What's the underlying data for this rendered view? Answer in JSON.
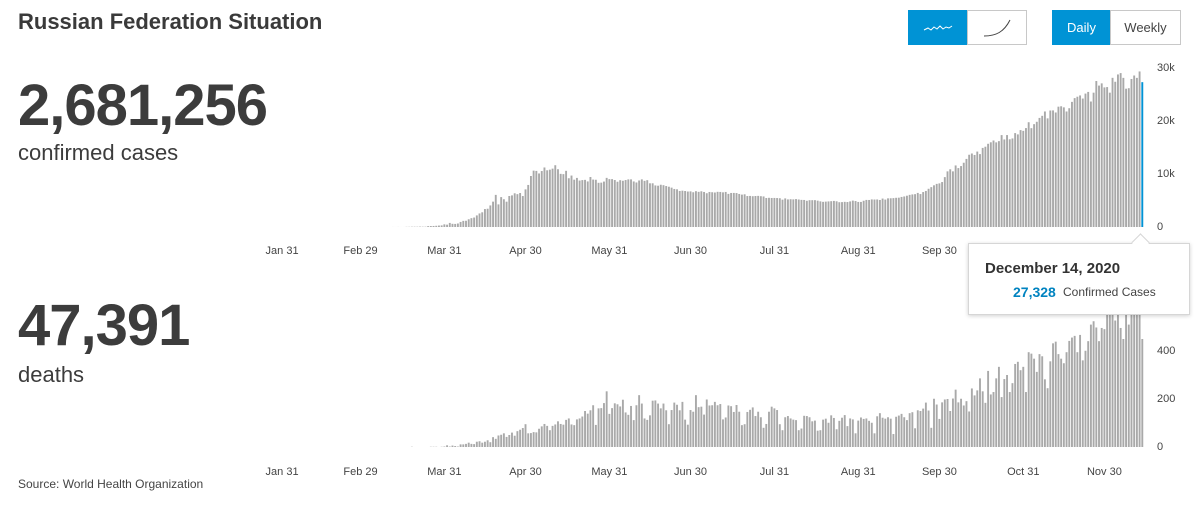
{
  "title": "Russian Federation Situation",
  "summary": {
    "cases_total": "2,681,256",
    "cases_label": "confirmed cases",
    "deaths_total": "47,391",
    "deaths_label": "deaths"
  },
  "controls": {
    "daily": "Daily",
    "weekly": "Weekly"
  },
  "tooltip": {
    "date": "December 14, 2020",
    "value": "27,328",
    "label": "Confirmed Cases"
  },
  "source": "Source: World Health Organization",
  "chart_data": [
    {
      "type": "bar",
      "color": "#a9a9a9",
      "highlight_color": "#0093d5",
      "xlim": [
        21,
        350
      ],
      "xticks": [
        {
          "value": 31,
          "label": "Jan 31"
        },
        {
          "value": 60,
          "label": "Feb 29"
        },
        {
          "value": 91,
          "label": "Mar 31"
        },
        {
          "value": 121,
          "label": "Apr 30"
        },
        {
          "value": 152,
          "label": "May 31"
        },
        {
          "value": 182,
          "label": "Jun 30"
        },
        {
          "value": 213,
          "label": "Jul 31"
        },
        {
          "value": 244,
          "label": "Aug 31"
        },
        {
          "value": 274,
          "label": "Sep 30"
        }
      ],
      "ylim": [
        0,
        30000
      ],
      "yticks": [
        0,
        {
          "value": 10000,
          "label": "10k"
        },
        {
          "value": 20000,
          "label": "20k"
        },
        {
          "value": 30000,
          "label": "30k"
        }
      ],
      "x": [
        72,
        73,
        74,
        75,
        76,
        77,
        78,
        79,
        80,
        81,
        82,
        83,
        84,
        85,
        86,
        87,
        88,
        89,
        90,
        91,
        92,
        93,
        94,
        95,
        96,
        97,
        98,
        99,
        100,
        101,
        102,
        103,
        104,
        105,
        106,
        107,
        108,
        109,
        110,
        111,
        112,
        113,
        114,
        115,
        116,
        117,
        118,
        119,
        120,
        121,
        122,
        123,
        124,
        125,
        126,
        127,
        128,
        129,
        130,
        131,
        132,
        133,
        134,
        135,
        136,
        137,
        138,
        139,
        140,
        141,
        142,
        143,
        144,
        145,
        146,
        147,
        148,
        149,
        150,
        151,
        152,
        153,
        154,
        155,
        156,
        157,
        158,
        159,
        160,
        161,
        162,
        163,
        164,
        165,
        166,
        167,
        168,
        169,
        170,
        171,
        172,
        173,
        174,
        175,
        176,
        177,
        178,
        179,
        180,
        181,
        182,
        183,
        184,
        185,
        186,
        187,
        188,
        189,
        190,
        191,
        192,
        193,
        194,
        195,
        196,
        197,
        198,
        199,
        200,
        201,
        202,
        203,
        204,
        205,
        206,
        207,
        208,
        209,
        210,
        211,
        212,
        213,
        214,
        215,
        216,
        217,
        218,
        219,
        220,
        221,
        222,
        223,
        224,
        225,
        226,
        227,
        228,
        229,
        230,
        231,
        232,
        233,
        234,
        235,
        236,
        237,
        238,
        239,
        240,
        241,
        242,
        243,
        244,
        245,
        246,
        247,
        248,
        249,
        250,
        251,
        252,
        253,
        254,
        255,
        256,
        257,
        258,
        259,
        260,
        261,
        262,
        263,
        264,
        265,
        266,
        267,
        268,
        269,
        270,
        271,
        272,
        273,
        274,
        275,
        276,
        277,
        278,
        279,
        280,
        281,
        282,
        283,
        284,
        285,
        286,
        287,
        288,
        289,
        290,
        291,
        292,
        293,
        294,
        295,
        296,
        297,
        298,
        299,
        300,
        301,
        302,
        303,
        304,
        305,
        306,
        307,
        308,
        309,
        310,
        311,
        312,
        313,
        314,
        315,
        316,
        317,
        318,
        319,
        320,
        321,
        322,
        323,
        324,
        325,
        326,
        327,
        328,
        329,
        330,
        331,
        332,
        333,
        334,
        335,
        336,
        337,
        338,
        339,
        340,
        341,
        342,
        343,
        344,
        345,
        346,
        347,
        348,
        349
      ],
      "values": [
        6,
        4,
        11,
        4,
        3,
        30,
        33,
        52,
        54,
        53,
        71,
        57,
        58,
        163,
        182,
        196,
        228,
        270,
        302,
        500,
        440,
        771,
        601,
        582,
        658,
        954,
        1154,
        1175,
        1459,
        1667,
        1786,
        2186,
        2558,
        2774,
        3388,
        3448,
        4070,
        4785,
        6060,
        4268,
        5642,
        5236,
        4774,
        5849,
        5966,
        6361,
        6198,
        6411,
        5841,
        7099,
        7933,
        9623,
        10633,
        10581,
        10102,
        10559,
        11231,
        10699,
        10817,
        11012,
        11656,
        10899,
        10028,
        9974,
        10598,
        9200,
        9709,
        8926,
        9263,
        8764,
        8849,
        8894,
        8599,
        9434,
        8946,
        8915,
        8338,
        8371,
        8572,
        9268,
        9035,
        9035,
        8863,
        8536,
        8831,
        8726,
        8855,
        8984,
        8985,
        8595,
        8404,
        8779,
        8987,
        8706,
        8835,
        8246,
        8248,
        7843,
        7790,
        7972,
        7889,
        7728,
        7600,
        7425,
        7176,
        7113,
        6800,
        6852,
        6791,
        6693,
        6719,
        6556,
        6760,
        6632,
        6736,
        6611,
        6368,
        6611,
        6562,
        6509,
        6635,
        6615,
        6537,
        6615,
        6248,
        6422,
        6428,
        6406,
        6234,
        6109,
        6170,
        5842,
        5862,
        5811,
        5848,
        5871,
        5811,
        5765,
        5475,
        5509,
        5475,
        5482,
        5462,
        5427,
        5159,
        5394,
        5204,
        5241,
        5212,
        5267,
        5189,
        5118,
        5102,
        4945,
        5057,
        5061,
        5065,
        4969,
        4839,
        4748,
        4790,
        4828,
        4870,
        4921,
        4852,
        4676,
        4696,
        4744,
        4711,
        4829,
        4980,
        4897,
        4729,
        4729,
        4952,
        5110,
        5099,
        5205,
        5185,
        5195,
        5099,
        5363,
        5172,
        5405,
        5421,
        5449,
        5509,
        5529,
        5670,
        5762,
        5905,
        6065,
        6148,
        6196,
        6431,
        6215,
        6595,
        6800,
        7212,
        7523,
        7867,
        8135,
        8232,
        8481,
        9412,
        10499,
        10888,
        10499,
        11615,
        11115,
        11493,
        12126,
        12846,
        13634,
        13868,
        13592,
        14231,
        13754,
        14922,
        15150,
        15700,
        15982,
        16319,
        15971,
        16202,
        17340,
        16521,
        17347,
        16550,
        16710,
        17717,
        17473,
        18283,
        18140,
        18665,
        19768,
        18648,
        19404,
        19851,
        20582,
        20977,
        21798,
        20498,
        21983,
        22000,
        21608,
        22702,
        22778,
        22572,
        21798,
        22410,
        23610,
        24318,
        24581,
        24822,
        24236,
        25173,
        25487,
        23675,
        25345,
        27543,
        26683,
        27100,
        26338,
        26402,
        25345,
        28145,
        27403,
        28782,
        29039,
        28137,
        26097,
        26190,
        27927,
        28585,
        28137,
        29350,
        27328
      ]
    },
    {
      "type": "bar",
      "color": "#a9a9a9",
      "xlim": [
        21,
        350
      ],
      "xticks": [
        {
          "value": 31,
          "label": "Jan 31"
        },
        {
          "value": 60,
          "label": "Feb 29"
        },
        {
          "value": 91,
          "label": "Mar 31"
        },
        {
          "value": 121,
          "label": "Apr 30"
        },
        {
          "value": 152,
          "label": "May 31"
        },
        {
          "value": 182,
          "label": "Jun 30"
        },
        {
          "value": 213,
          "label": "Jul 31"
        },
        {
          "value": 244,
          "label": "Aug 31"
        },
        {
          "value": 274,
          "label": "Sep 30"
        },
        {
          "value": 305,
          "label": "Oct 31"
        },
        {
          "value": 335,
          "label": "Nov 30"
        }
      ],
      "ylim": [
        0,
        600
      ],
      "yticks": [
        0,
        200,
        400
      ],
      "x": [
        72,
        73,
        74,
        75,
        76,
        77,
        78,
        79,
        80,
        81,
        82,
        83,
        84,
        85,
        86,
        87,
        88,
        89,
        90,
        91,
        92,
        93,
        94,
        95,
        96,
        97,
        98,
        99,
        100,
        101,
        102,
        103,
        104,
        105,
        106,
        107,
        108,
        109,
        110,
        111,
        112,
        113,
        114,
        115,
        116,
        117,
        118,
        119,
        120,
        121,
        122,
        123,
        124,
        125,
        126,
        127,
        128,
        129,
        130,
        131,
        132,
        133,
        134,
        135,
        136,
        137,
        138,
        139,
        140,
        141,
        142,
        143,
        144,
        145,
        146,
        147,
        148,
        149,
        150,
        151,
        152,
        153,
        154,
        155,
        156,
        157,
        158,
        159,
        160,
        161,
        162,
        163,
        164,
        165,
        166,
        167,
        168,
        169,
        170,
        171,
        172,
        173,
        174,
        175,
        176,
        177,
        178,
        179,
        180,
        181,
        182,
        183,
        184,
        185,
        186,
        187,
        188,
        189,
        190,
        191,
        192,
        193,
        194,
        195,
        196,
        197,
        198,
        199,
        200,
        201,
        202,
        203,
        204,
        205,
        206,
        207,
        208,
        209,
        210,
        211,
        212,
        213,
        214,
        215,
        216,
        217,
        218,
        219,
        220,
        221,
        222,
        223,
        224,
        225,
        226,
        227,
        228,
        229,
        230,
        231,
        232,
        233,
        234,
        235,
        236,
        237,
        238,
        239,
        240,
        241,
        242,
        243,
        244,
        245,
        246,
        247,
        248,
        249,
        250,
        251,
        252,
        253,
        254,
        255,
        256,
        257,
        258,
        259,
        260,
        261,
        262,
        263,
        264,
        265,
        266,
        267,
        268,
        269,
        270,
        271,
        272,
        273,
        274,
        275,
        276,
        277,
        278,
        279,
        280,
        281,
        282,
        283,
        284,
        285,
        286,
        287,
        288,
        289,
        290,
        291,
        292,
        293,
        294,
        295,
        296,
        297,
        298,
        299,
        300,
        301,
        302,
        303,
        304,
        305,
        306,
        307,
        308,
        309,
        310,
        311,
        312,
        313,
        314,
        315,
        316,
        317,
        318,
        319,
        320,
        321,
        322,
        323,
        324,
        325,
        326,
        327,
        328,
        329,
        330,
        331,
        332,
        333,
        334,
        335,
        336,
        337,
        338,
        339,
        340,
        341,
        342,
        343,
        344,
        345,
        346,
        347,
        348,
        349
      ],
      "values": [
        0,
        0,
        0,
        0,
        0,
        0,
        0,
        1,
        0,
        0,
        0,
        0,
        0,
        0,
        1,
        1,
        1,
        0,
        1,
        2,
        7,
        2,
        6,
        4,
        2,
        11,
        11,
        13,
        18,
        13,
        12,
        22,
        24,
        18,
        22,
        28,
        20,
        41,
        34,
        48,
        51,
        57,
        42,
        50,
        60,
        47,
        66,
        72,
        79,
        95,
        57,
        58,
        62,
        61,
        76,
        86,
        96,
        88,
        70,
        88,
        94,
        107,
        96,
        93,
        113,
        119,
        94,
        91,
        115,
        119,
        127,
        150,
        139,
        153,
        174,
        92,
        161,
        162,
        183,
        232,
        138,
        162,
        182,
        178,
        169,
        197,
        144,
        134,
        171,
        112,
        174,
        216,
        181,
        119,
        113,
        132,
        193,
        194,
        181,
        161,
        181,
        153,
        95,
        154,
        185,
        176,
        153,
        188,
        114,
        93,
        154,
        147,
        216,
        166,
        168,
        135,
        198,
        173,
        174,
        188,
        174,
        179,
        115,
        123,
        173,
        170,
        146,
        175,
        147,
        91,
        95,
        146,
        155,
        165,
        129,
        147,
        124,
        80,
        96,
        147,
        168,
        161,
        154,
        95,
        70,
        124,
        129,
        119,
        114,
        112,
        70,
        77,
        130,
        129,
        124,
        107,
        110,
        68,
        70,
        114,
        118,
        101,
        132,
        121,
        74,
        109,
        122,
        133,
        87,
        119,
        115,
        57,
        110,
        123,
        117,
        119,
        109,
        101,
        57,
        128,
        141,
        122,
        118,
        124,
        118,
        54,
        126,
        131,
        138,
        124,
        112,
        141,
        145,
        78,
        153,
        150,
        160,
        185,
        152,
        80,
        201,
        177,
        117,
        186,
        198,
        200,
        150,
        202,
        239,
        186,
        201,
        173,
        191,
        148,
        244,
        215,
        236,
        286,
        232,
        184,
        317,
        219,
        229,
        286,
        334,
        208,
        283,
        300,
        229,
        266,
        346,
        355,
        320,
        334,
        229,
        395,
        389,
        368,
        313,
        387,
        378,
        282,
        245,
        357,
        432,
        439,
        387,
        368,
        349,
        395,
        442,
        456,
        463,
        395,
        467,
        361,
        401,
        441,
        510,
        524,
        498,
        441,
        496,
        491,
        569,
        589,
        560,
        527,
        571,
        496,
        450,
        574,
        510,
        560,
        570,
        578,
        560,
        450
      ]
    }
  ]
}
